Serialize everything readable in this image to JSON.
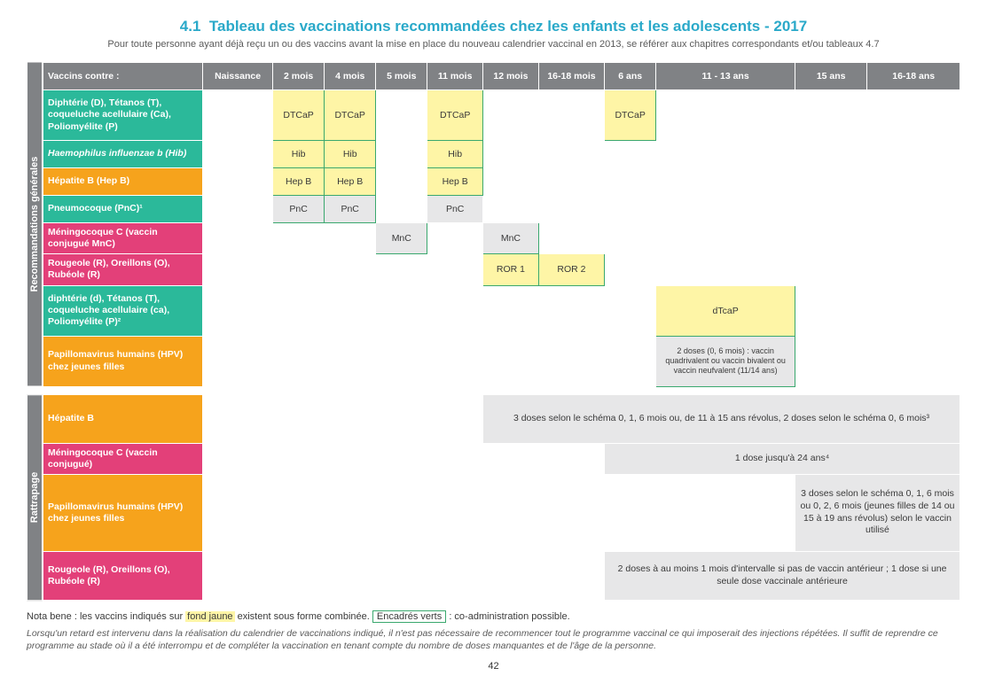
{
  "title_prefix": "4.1",
  "title_text": "Tableau des vaccinations recommandées chez les enfants et les adolescents - 2017",
  "title_prefix_color": "#2aa9c9",
  "title_text_color": "#2aa9c9",
  "subtitle": "Pour toute personne ayant déjà reçu un ou des vaccins avant la mise en place du nouveau calendrier vaccinal en 2013, se référer aux chapitres correspondants et/ou tableaux 4.7",
  "headers": [
    "Vaccins contre :",
    "Naissance",
    "2 mois",
    "4 mois",
    "5 mois",
    "11 mois",
    "12 mois",
    "16-18 mois",
    "6 ans",
    "11 - 13 ans",
    "15 ans",
    "16-18 ans"
  ],
  "col_widths": [
    "155px",
    "68px",
    "50px",
    "50px",
    "50px",
    "54px",
    "54px",
    "64px",
    "50px",
    "135px",
    "70px",
    "90px"
  ],
  "section1_label": "Recommandations générales",
  "section2_label": "Rattrapage",
  "colors": {
    "teal": "#2bb99a",
    "orange": "#f6a31c",
    "pink": "#e34079",
    "grey_header": "#808285",
    "cell_grey": "#e7e7e8",
    "cell_yellow": "#fef5a6",
    "green_border": "#3aa86e"
  },
  "sec1_rows": [
    {
      "label": "Diphtérie (D), Tétanos (T), coqueluche acellulaire (Ca), Poliomyélite (P)",
      "color": "teal",
      "cells": [
        {
          "col": 2,
          "text": "DTCaP",
          "style": "yellow-box"
        },
        {
          "col": 3,
          "text": "DTCaP",
          "style": "yellow-box"
        },
        {
          "col": 5,
          "text": "DTCaP",
          "style": "yellow-box"
        },
        {
          "col": 8,
          "text": "DTCaP",
          "style": "yellow-box"
        }
      ],
      "tall": true
    },
    {
      "label": "Haemophilus influenzae b (Hib)",
      "color": "teal",
      "italic": true,
      "cells": [
        {
          "col": 2,
          "text": "Hib",
          "style": "yellow-box"
        },
        {
          "col": 3,
          "text": "Hib",
          "style": "yellow-box"
        },
        {
          "col": 5,
          "text": "Hib",
          "style": "yellow-box"
        }
      ]
    },
    {
      "label": "Hépatite B (Hep B)",
      "color": "orange",
      "cells": [
        {
          "col": 2,
          "text": "Hep B",
          "style": "yellow-box"
        },
        {
          "col": 3,
          "text": "Hep B",
          "style": "yellow-box"
        },
        {
          "col": 5,
          "text": "Hep B",
          "style": "yellow-box"
        }
      ]
    },
    {
      "label": "Pneumocoque (PnC)¹",
      "color": "teal",
      "cells": [
        {
          "col": 2,
          "text": "PnC",
          "style": "green-box"
        },
        {
          "col": 3,
          "text": "PnC",
          "style": "green-box"
        },
        {
          "col": 5,
          "text": "PnC",
          "style": "grey-box"
        }
      ]
    },
    {
      "label": "Méningocoque C (vaccin conjugué  MnC)",
      "color": "pink",
      "cells": [
        {
          "col": 4,
          "text": "MnC",
          "style": "green-box"
        },
        {
          "col": 6,
          "text": "MnC",
          "style": "green-box"
        }
      ]
    },
    {
      "label": "Rougeole (R), Oreillons (O), Rubéole (R)",
      "color": "pink",
      "cells": [
        {
          "col": 6,
          "text": "ROR 1",
          "style": "yellow-box"
        },
        {
          "col": 7,
          "text": "ROR 2",
          "style": "yellow-box"
        }
      ]
    },
    {
      "label": "diphtérie (d), Tétanos (T), coqueluche acellulaire (ca), Poliomyélite (P)²",
      "color": "teal",
      "cells": [
        {
          "col": 9,
          "text": "dTcaP",
          "style": "yellow-box"
        }
      ],
      "tall": true
    },
    {
      "label": "Papillomavirus humains (HPV) chez jeunes filles",
      "color": "orange",
      "cells": [
        {
          "col": 9,
          "text": "2 doses (0, 6 mois) : vaccin quadrivalent ou vaccin bivalent ou vaccin neufvalent (11/14 ans)",
          "style": "green-box",
          "small": true
        }
      ],
      "tall": true
    }
  ],
  "sec2_rows": [
    {
      "label": "Hépatite B",
      "color": "orange",
      "span": {
        "from": 6,
        "to": 11,
        "text": "3 doses selon le schéma 0, 1, 6 mois ou, de 11 à 15 ans révolus, 2 doses selon le schéma 0, 6 mois³",
        "style": "grey-box"
      },
      "tall": true
    },
    {
      "label": "Méningocoque C (vaccin conjugué)",
      "color": "pink",
      "span": {
        "from": 8,
        "to": 11,
        "text": "1 dose jusqu'à 24 ans⁴",
        "style": "grey-box"
      }
    },
    {
      "label": "Papillomavirus humains (HPV) chez jeunes filles",
      "color": "orange",
      "span": {
        "from": 10,
        "to": 11,
        "text": "3 doses selon le schéma 0, 1, 6 mois ou 0, 2, 6 mois (jeunes filles de 14 ou 15 à 19 ans révolus) selon le vaccin utilisé",
        "style": "grey-box"
      },
      "tall": true,
      "very_tall": true
    },
    {
      "label": "Rougeole (R), Oreillons (O), Rubéole (R)",
      "color": "pink",
      "span": {
        "from": 8,
        "to": 11,
        "text": "2 doses à au moins 1 mois d'intervalle si pas de vaccin antérieur ; 1 dose si une seule dose vaccinale antérieure",
        "style": "grey-box"
      },
      "tall": true
    }
  ],
  "nota_label": "Nota bene :",
  "nota_pre": "les vaccins indiqués sur",
  "nota_yellow": "fond jaune",
  "nota_mid": "existent sous forme combinée.",
  "nota_green": "Encadrés verts",
  "nota_post": ": co-administration possible.",
  "footnote": "Lorsqu'un retard est intervenu dans la réalisation du calendrier de vaccinations indiqué, il n'est pas nécessaire de recommencer tout le programme vaccinal ce qui imposerait des injections répétées. Il suffit de reprendre ce programme au stade où il a été interrompu et de compléter la vaccination en tenant compte du nombre de doses manquantes et de l'âge de la personne.",
  "page_number": "42"
}
